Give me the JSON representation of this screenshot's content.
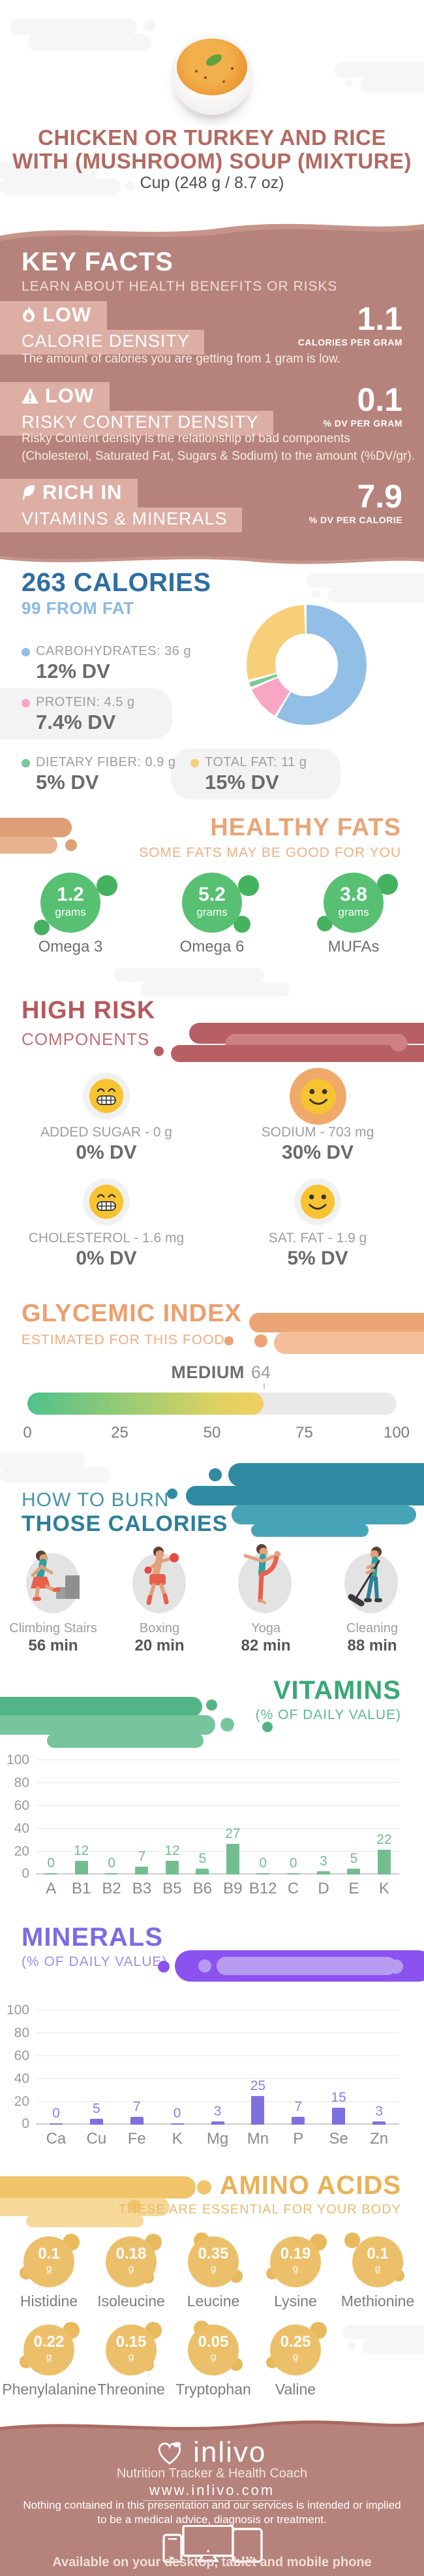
{
  "header": {
    "title_line1": "CHICKEN OR TURKEY AND RICE",
    "title_line2": "WITH (MUSHROOM) SOUP (MIXTURE)",
    "serving": "Cup (248 g / 8.7 oz)"
  },
  "key_facts": {
    "title": "KEY FACTS",
    "subtitle": "LEARN ABOUT HEALTH BENEFITS OR RISKS",
    "items": [
      {
        "badge": "LOW",
        "name": "CALORIE DENSITY",
        "value": "1.1",
        "unit": "CALORIES PER GRAM",
        "description": "The amount of calories you are getting from 1 gram is low."
      },
      {
        "badge": "LOW",
        "name": "RISKY CONTENT DENSITY",
        "value": "0.1",
        "unit": "% DV PER GRAM",
        "description_line1": "Risky Content density is the relationship of bad components",
        "description_line2": "(Cholesterol, Saturated Fat, Sugars & Sodium) to the amount (%DV/gr)."
      },
      {
        "badge": "RICH IN",
        "name": "VITAMINS & MINERALS",
        "value": "7.9",
        "unit": "% DV PER CALORIE"
      }
    ]
  },
  "calories": {
    "title": "263 CALORIES",
    "subtitle": "99 FROM FAT",
    "legend": [
      {
        "label": "CARBOHYDRATES: 36 g",
        "dv": "12% DV",
        "color": "#92bfe5"
      },
      {
        "label": "PROTEIN: 4.5 g",
        "dv": "7.4% DV",
        "color": "#f9a6c5"
      },
      {
        "label": "DIETARY FIBER: 0.9 g",
        "dv": "5% DV",
        "color": "#7dc79a"
      },
      {
        "label": "TOTAL FAT: 11 g",
        "dv": "15% DV",
        "color": "#f6cf78"
      }
    ]
  },
  "healthy_fats": {
    "title": "HEALTHY FATS",
    "subtitle": "SOME FATS MAY BE GOOD FOR YOU",
    "items": [
      {
        "value": "1.2",
        "unit": "grams",
        "name": "Omega 3"
      },
      {
        "value": "5.2",
        "unit": "grams",
        "name": "Omega 6"
      },
      {
        "value": "3.8",
        "unit": "grams",
        "name": "MUFAs"
      }
    ]
  },
  "high_risk": {
    "title": "HIGH RISK",
    "subtitle": "COMPONENTS",
    "items": [
      {
        "face": "grin",
        "label": "ADDED SUGAR - 0 g",
        "dv": "0% DV"
      },
      {
        "face": "smile-ring",
        "label": "SODIUM - 703 mg",
        "dv": "30% DV"
      },
      {
        "face": "grin",
        "label": "CHOLESTEROL - 1.6 mg",
        "dv": "0% DV"
      },
      {
        "face": "smile",
        "label": "SAT. FAT - 1.9 g",
        "dv": "5% DV"
      }
    ]
  },
  "glycemic_index": {
    "title": "GLYCEMIC INDEX",
    "subtitle": "ESTIMATED FOR THIS FOOD",
    "level": "MEDIUM",
    "value": "64",
    "scale": [
      "0",
      "25",
      "50",
      "75",
      "100"
    ]
  },
  "burn": {
    "title_line1": "HOW TO BURN",
    "title_line2": "THOSE CALORIES",
    "activities": [
      {
        "name": "Climbing Stairs",
        "duration": "56 min"
      },
      {
        "name": "Boxing",
        "duration": "20 min"
      },
      {
        "name": "Yoga",
        "duration": "82 min"
      },
      {
        "name": "Cleaning",
        "duration": "88 min"
      }
    ]
  },
  "vitamins": {
    "title": "VITAMINS",
    "subtitle": "(% OF DAILY VALUE)"
  },
  "minerals": {
    "title": "MINERALS",
    "subtitle": "(% OF DAILY VALUE)"
  },
  "amino_acids": {
    "title": "AMINO ACIDS",
    "subtitle": "THESE ARE ESSENTIAL FOR YOUR BODY",
    "items": [
      {
        "value": "0.1",
        "unit": "g",
        "name": "Histidine"
      },
      {
        "value": "0.18",
        "unit": "g",
        "name": "Isoleucine"
      },
      {
        "value": "0.35",
        "unit": "g",
        "name": "Leucine"
      },
      {
        "value": "0.19",
        "unit": "g",
        "name": "Lysine"
      },
      {
        "value": "0.1",
        "unit": "g",
        "name": "Methionine"
      },
      {
        "value": "0.22",
        "unit": "g",
        "name": "Phenylalanine"
      },
      {
        "value": "0.15",
        "unit": "g",
        "name": "Threonine"
      },
      {
        "value": "0.05",
        "unit": "g",
        "name": "Tryptophan"
      },
      {
        "value": "0.25",
        "unit": "g",
        "name": "Valine"
      }
    ]
  },
  "footer": {
    "brand": "inlivo",
    "tagline": "Nutrition Tracker & Health Coach",
    "url": "www.inlivo.com",
    "disclaimer_line1": "Nothing contained in this presentation and our services is intended or implied",
    "disclaimer_line2": "to be a medical advice, diagnosis or treatment.",
    "availability": "Available on your desktop, tablet and mobile phone"
  },
  "chart_data": [
    {
      "type": "pie",
      "subtype": "donut",
      "title": "263 CALORIES breakdown",
      "segments": [
        {
          "label": "Carbohydrates",
          "grams": 36,
          "dv_percent": 12,
          "fraction": 59,
          "color": "#92bfe5"
        },
        {
          "label": "Protein",
          "grams": 4.5,
          "dv_percent": 7.4,
          "fraction": 10,
          "color": "#f9a6c5"
        },
        {
          "label": "Dietary Fiber",
          "grams": 0.9,
          "dv_percent": 5,
          "fraction": 2,
          "color": "#7dc79a"
        },
        {
          "label": "Total Fat",
          "grams": 11,
          "dv_percent": 15,
          "fraction": 29,
          "color": "#f6cf78"
        }
      ]
    },
    {
      "type": "gauge",
      "title": "GLYCEMIC INDEX",
      "label": "MEDIUM",
      "value": 64,
      "min": 0,
      "max": 100,
      "ticks": [
        0,
        25,
        50,
        75,
        100
      ],
      "track_color": "#e9e9e9",
      "fill_colors": [
        "#4fc18c",
        "#ddd262",
        "#f2cf63"
      ]
    },
    {
      "type": "bar",
      "title": "VITAMINS (% OF DAILY VALUE)",
      "categories": [
        "A",
        "B1",
        "B2",
        "B3",
        "B5",
        "B6",
        "B9",
        "B12",
        "C",
        "D",
        "E",
        "K"
      ],
      "values": [
        0,
        12,
        0,
        7,
        12,
        5,
        27,
        0,
        0,
        3,
        5,
        22
      ],
      "ylim": [
        0,
        100
      ],
      "yticks": [
        0,
        20,
        40,
        60,
        80,
        100
      ],
      "bar_color": "#74bd90",
      "label_color": "#74bd90",
      "grid": true,
      "legend_position": "none"
    },
    {
      "type": "bar",
      "title": "MINERALS (% OF DAILY VALUE)",
      "categories": [
        "Ca",
        "Cu",
        "Fe",
        "K",
        "Mg",
        "Mn",
        "P",
        "Se",
        "Zn"
      ],
      "values": [
        0,
        5,
        7,
        0,
        3,
        25,
        7,
        15,
        3
      ],
      "ylim": [
        0,
        100
      ],
      "yticks": [
        0,
        20,
        40,
        60,
        80,
        100
      ],
      "bar_color": "#7d72dd",
      "label_color": "#8a7fe3",
      "grid": true,
      "legend_position": "none"
    }
  ]
}
